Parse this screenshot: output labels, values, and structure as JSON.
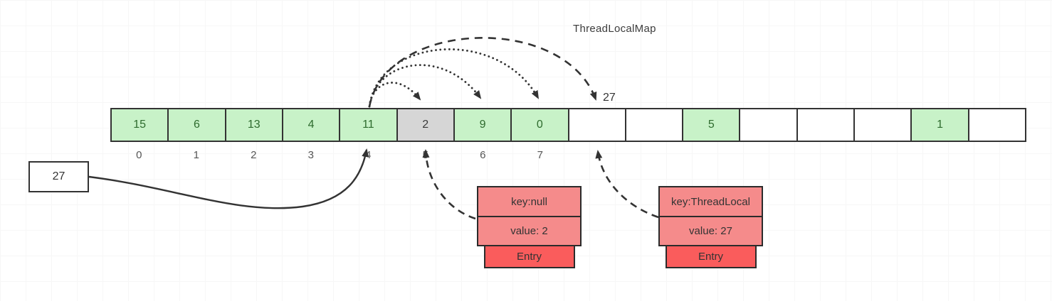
{
  "title": "ThreadLocalMap",
  "array": {
    "cells": [
      {
        "value": "15",
        "state": "green"
      },
      {
        "value": "6",
        "state": "green"
      },
      {
        "value": "13",
        "state": "green"
      },
      {
        "value": "4",
        "state": "green"
      },
      {
        "value": "11",
        "state": "green"
      },
      {
        "value": "2",
        "state": "gray"
      },
      {
        "value": "9",
        "state": "green"
      },
      {
        "value": "0",
        "state": "green"
      },
      {
        "value": "",
        "state": "white"
      },
      {
        "value": "",
        "state": "white"
      },
      {
        "value": "5",
        "state": "green"
      },
      {
        "value": "",
        "state": "white"
      },
      {
        "value": "",
        "state": "white"
      },
      {
        "value": "",
        "state": "white"
      },
      {
        "value": "1",
        "state": "green"
      },
      {
        "value": "",
        "state": "white"
      }
    ],
    "index_labels": [
      "0",
      "1",
      "2",
      "3",
      "4",
      "5",
      "6",
      "7"
    ]
  },
  "external_box": {
    "value": "27"
  },
  "probe_label": "27",
  "entries": [
    {
      "key_label": "key:null",
      "value_label": "value: 2",
      "type_label": "Entry"
    },
    {
      "key_label": "key:ThreadLocal",
      "value_label": "value: 27",
      "type_label": "Entry"
    }
  ],
  "colors": {
    "cell_green": "#c8f2c8",
    "cell_gray": "#d6d6d6",
    "cell_white": "#ffffff",
    "cell_text_green": "#2e6b2e",
    "entry_fill": "#f58b8b",
    "entry_tag_fill": "#fa5c5c",
    "stroke": "#333333",
    "index_text": "#555555"
  }
}
